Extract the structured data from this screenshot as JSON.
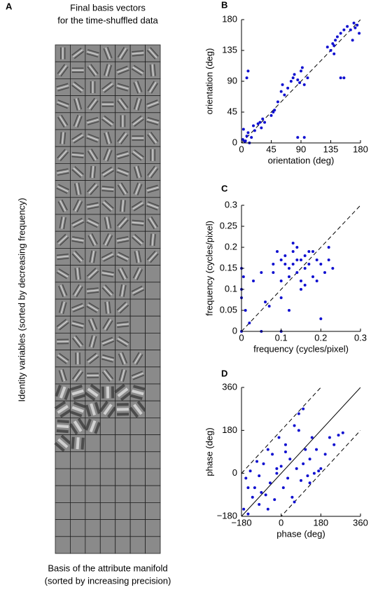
{
  "panel_a": {
    "label": "A",
    "title": [
      "Final basis vectors",
      "for the time-shuffled data"
    ],
    "ylabel": "Identity variables (sorted by decreasing frequency)",
    "xlabel": [
      "Basis of the attribute manifold",
      "(sorted by increasing precision)"
    ]
  },
  "chart_data": [
    {
      "type": "scatter",
      "label": "B",
      "xlabel": "orientation (deg)",
      "ylabel": "orientation (deg)",
      "color": "#1010d0",
      "identity_line": "dashed",
      "xlim": [
        0,
        180
      ],
      "ylim": [
        0,
        180
      ],
      "xticks": [
        0,
        45,
        90,
        135,
        180
      ],
      "yticks": [
        0,
        45,
        90,
        135,
        180
      ],
      "x": [
        2,
        5,
        8,
        10,
        12,
        15,
        3,
        6,
        18,
        20,
        25,
        28,
        30,
        32,
        35,
        45,
        48,
        50,
        55,
        60,
        62,
        65,
        70,
        75,
        78,
        80,
        85,
        88,
        90,
        92,
        95,
        100,
        10,
        8,
        85,
        95,
        130,
        135,
        138,
        140,
        142,
        145,
        150,
        155,
        160,
        165,
        170,
        172,
        175,
        178,
        150,
        155,
        168,
        140
      ],
      "y": [
        5,
        2,
        10,
        15,
        0,
        8,
        20,
        3,
        25,
        18,
        28,
        30,
        22,
        35,
        30,
        40,
        45,
        48,
        60,
        75,
        85,
        70,
        80,
        90,
        95,
        100,
        92,
        88,
        105,
        110,
        85,
        95,
        105,
        95,
        8,
        8,
        140,
        135,
        145,
        130,
        150,
        155,
        160,
        165,
        170,
        165,
        175,
        168,
        172,
        160,
        95,
        95,
        150,
        142
      ]
    },
    {
      "type": "scatter",
      "label": "C",
      "xlabel": "frequency (cycles/pixel)",
      "ylabel": "frequency (cycles/pixel)",
      "color": "#1010d0",
      "identity_line": "dashed",
      "xlim": [
        0,
        0.3
      ],
      "ylim": [
        0,
        0.3
      ],
      "xticks": [
        0,
        0.1,
        0.2,
        0.3
      ],
      "yticks": [
        0,
        0.05,
        0.1,
        0.15,
        0.2,
        0.25,
        0.3
      ],
      "x": [
        0,
        0,
        0,
        0.005,
        0.01,
        0.02,
        0.05,
        0.06,
        0.08,
        0.1,
        0.1,
        0.1,
        0.11,
        0.12,
        0.12,
        0.13,
        0.13,
        0.14,
        0.14,
        0.15,
        0.15,
        0.16,
        0.16,
        0.17,
        0.18,
        0.18,
        0.19,
        0.2,
        0.21,
        0.22,
        0.23,
        0.1,
        0.12,
        0.15,
        0.2,
        0.14,
        0.17,
        0.08,
        0.03,
        0,
        0.09,
        0.13,
        0.19,
        0.22,
        0.16,
        0.11,
        0.05,
        0.07
      ],
      "y": [
        0.15,
        0.1,
        0,
        0.13,
        0.05,
        0.02,
        0,
        0.07,
        0.16,
        0.17,
        0.12,
        0,
        0.18,
        0.15,
        0.13,
        0.19,
        0.16,
        0.14,
        0.2,
        0.17,
        0.12,
        0.18,
        0.15,
        0.16,
        0.19,
        0.13,
        0.17,
        0.16,
        0.14,
        0.2,
        0.15,
        0.08,
        0.05,
        0.1,
        0.03,
        0.17,
        0.19,
        0.14,
        0.12,
        0.08,
        0.19,
        0.21,
        0.12,
        0.17,
        0.11,
        0.16,
        0.14,
        0.06
      ]
    },
    {
      "type": "scatter",
      "label": "D",
      "xlabel": "phase (deg)",
      "ylabel": "phase (deg)",
      "color": "#1010d0",
      "identity_line": "solid",
      "offset_lines": [
        -180,
        180
      ],
      "xlim": [
        -180,
        360
      ],
      "ylim": [
        -180,
        360
      ],
      "xticks": [
        {
          "value": -180,
          "label": "−180"
        },
        0,
        180,
        360
      ],
      "yticks": [
        {
          "value": -180,
          "label": "−180"
        },
        0,
        180,
        360
      ],
      "x": [
        -170,
        -160,
        -150,
        -140,
        -130,
        -120,
        -110,
        -100,
        -90,
        -80,
        -70,
        -60,
        -50,
        -40,
        -30,
        -20,
        -10,
        0,
        10,
        20,
        30,
        40,
        50,
        60,
        70,
        80,
        90,
        100,
        110,
        120,
        130,
        140,
        150,
        160,
        170,
        180,
        200,
        220,
        240,
        260,
        280,
        -150,
        -100,
        -60,
        -20,
        20,
        60,
        80,
        100,
        130
      ],
      "y": [
        -150,
        -20,
        -170,
        10,
        -100,
        -60,
        50,
        -130,
        -80,
        40,
        -90,
        100,
        -40,
        80,
        -110,
        0,
        150,
        30,
        -60,
        120,
        -20,
        60,
        -100,
        200,
        20,
        250,
        -30,
        40,
        100,
        -10,
        60,
        150,
        0,
        100,
        10,
        20,
        80,
        150,
        120,
        160,
        170,
        -60,
        -10,
        -150,
        20,
        90,
        -120,
        180,
        270,
        -40
      ]
    }
  ]
}
